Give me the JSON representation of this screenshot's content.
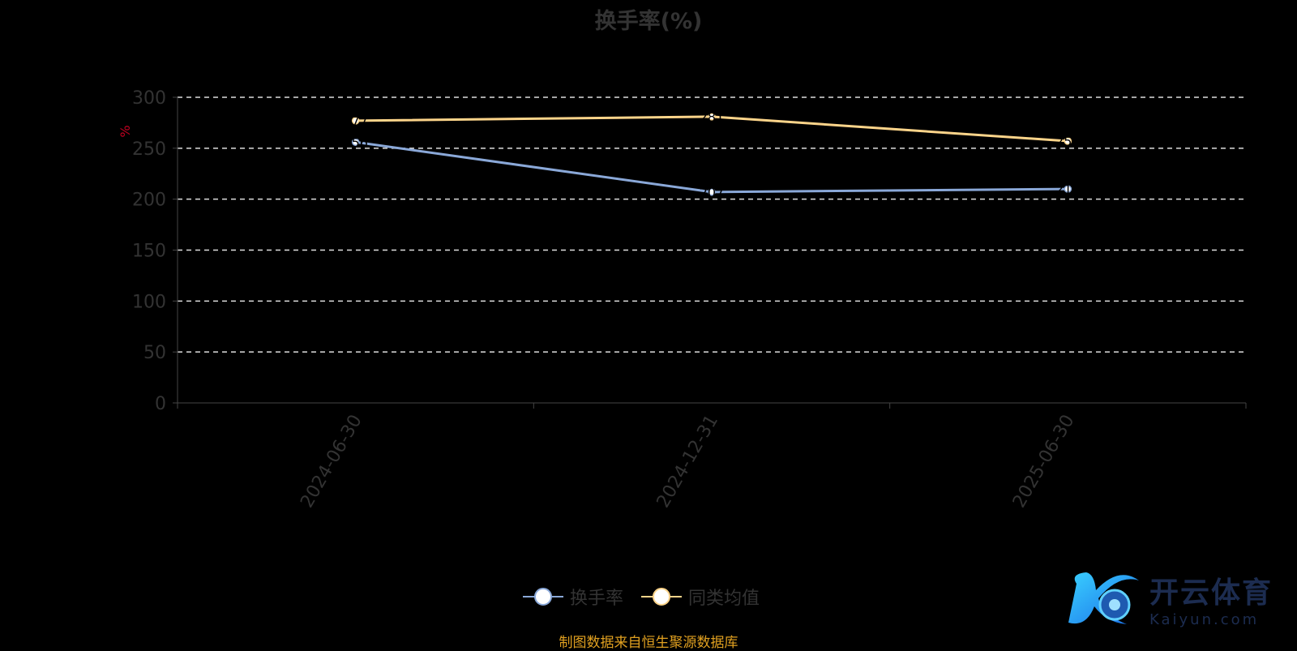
{
  "chart_data": {
    "type": "line",
    "title": "换手率(%)",
    "ylabel": "%",
    "categories": [
      "2024-06-30",
      "2024-12-31",
      "2025-06-30"
    ],
    "series": [
      {
        "name": "换手率",
        "values": [
          256,
          207,
          210
        ],
        "color": "#8aa8d8"
      },
      {
        "name": "同类均值",
        "values": [
          277,
          281,
          257
        ],
        "color": "#fcd48a"
      }
    ],
    "ylim": [
      0,
      300
    ],
    "yticks": [
      0,
      50,
      100,
      150,
      200,
      250,
      300
    ],
    "grid": true,
    "legend": "bottom"
  },
  "footer": "制图数据来自恒生聚源数据库",
  "watermark": {
    "cn": "开云体育",
    "en": "Kaiyun.com"
  }
}
